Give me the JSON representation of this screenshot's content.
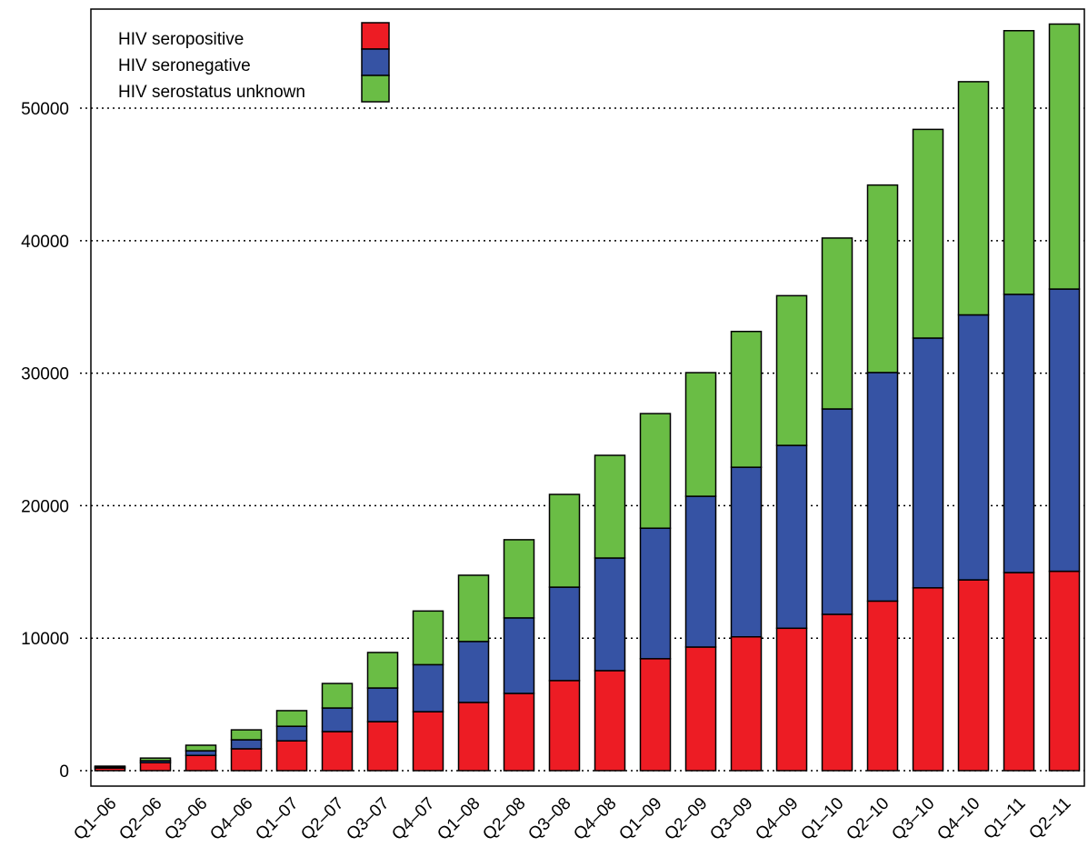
{
  "chart_data": {
    "type": "bar",
    "stacked": true,
    "categories": [
      "Q1–06",
      "Q2–06",
      "Q3–06",
      "Q4–06",
      "Q1–07",
      "Q2–07",
      "Q3–07",
      "Q4–07",
      "Q1–08",
      "Q2–08",
      "Q3–08",
      "Q4–08",
      "Q1–09",
      "Q2–09",
      "Q3–09",
      "Q4–09",
      "Q1–10",
      "Q2–10",
      "Q3–10",
      "Q4–10",
      "Q1–11",
      "Q2–11"
    ],
    "series": [
      {
        "name": "HIV seropositive",
        "color": "#ed1c24",
        "values": [
          200,
          600,
          1150,
          1650,
          2250,
          2950,
          3700,
          4450,
          5150,
          5830,
          6800,
          7550,
          8450,
          9330,
          10100,
          10750,
          11800,
          12800,
          13800,
          14400,
          14950,
          15050
        ]
      },
      {
        "name": "HIV seronegative",
        "color": "#3653a4",
        "values": [
          80,
          150,
          350,
          680,
          1100,
          1780,
          2540,
          3550,
          4600,
          5700,
          7050,
          8500,
          9850,
          11380,
          12800,
          13800,
          15500,
          17250,
          18850,
          20000,
          21000,
          21300
        ]
      },
      {
        "name": "HIV serostatus unknown",
        "color": "#6abd45",
        "values": [
          60,
          200,
          420,
          750,
          1180,
          1850,
          2680,
          4050,
          5000,
          5900,
          7000,
          7750,
          8650,
          9330,
          10250,
          11300,
          12900,
          14150,
          15750,
          17600,
          19900,
          20000
        ]
      }
    ],
    "ylim": [
      -1166,
      57480
    ],
    "yticks": [
      0,
      10000,
      20000,
      30000,
      40000,
      50000
    ],
    "grid": true,
    "legend": "top-left"
  }
}
